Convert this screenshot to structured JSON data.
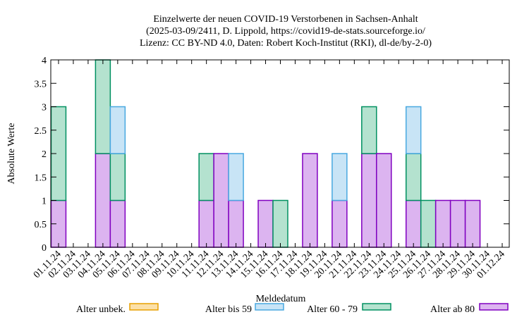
{
  "chart_data": {
    "type": "bar",
    "title_lines": [
      "Einzelwerte der neuen COVID-19 Verstorbenen in Sachsen-Anhalt",
      "(2025-03-09/2411, D. Lippold, https://covid19-de-stats.sourceforge.io/",
      "Lizenz: CC BY-ND 4.0, Daten: Robert Koch-Institut (RKI), dl-de/by-2-0)"
    ],
    "xlabel": "Meldedatum",
    "ylabel": "Absolute Werte",
    "ylim": [
      0,
      4
    ],
    "yticks": [
      "0",
      "0.5",
      "1",
      "1.5",
      "2",
      "2.5",
      "3",
      "3.5",
      "4"
    ],
    "stacked": true,
    "categories": [
      "01.11.24",
      "02.11.24",
      "03.11.24",
      "04.11.24",
      "05.11.24",
      "06.11.24",
      "07.11.24",
      "08.11.24",
      "09.11.24",
      "10.11.24",
      "11.11.24",
      "12.11.24",
      "13.11.24",
      "14.11.24",
      "15.11.24",
      "16.11.24",
      "17.11.24",
      "18.11.24",
      "19.11.24",
      "20.11.24",
      "21.11.24",
      "22.11.24",
      "23.11.24",
      "24.11.24",
      "25.11.24",
      "26.11.24",
      "27.11.24",
      "28.11.24",
      "29.11.24",
      "30.11.24",
      "01.12.24"
    ],
    "series": [
      {
        "name": "Alter ab 80",
        "fill": "#dcb4f0",
        "stroke": "#8000c0",
        "values": [
          1,
          0,
          0,
          2,
          1,
          0,
          0,
          0,
          0,
          0,
          1,
          2,
          1,
          0,
          1,
          0,
          0,
          2,
          0,
          1,
          0,
          2,
          2,
          0,
          1,
          0,
          1,
          1,
          1,
          0,
          0
        ]
      },
      {
        "name": "Alter 60 - 79",
        "fill": "#b4e2cf",
        "stroke": "#009060",
        "values": [
          2,
          0,
          0,
          2,
          1,
          0,
          0,
          0,
          0,
          0,
          1,
          0,
          0,
          0,
          0,
          1,
          0,
          0,
          0,
          0,
          0,
          1,
          0,
          0,
          1,
          1,
          0,
          0,
          0,
          0,
          0
        ]
      },
      {
        "name": "Alter bis 59",
        "fill": "#c8e4f6",
        "stroke": "#48a8e0",
        "values": [
          0,
          0,
          0,
          0,
          1,
          0,
          0,
          0,
          0,
          0,
          0,
          0,
          1,
          0,
          0,
          0,
          0,
          0,
          0,
          1,
          0,
          0,
          0,
          0,
          1,
          0,
          0,
          0,
          0,
          0,
          0
        ]
      },
      {
        "name": "Alter unbek.",
        "fill": "#fbe0a8",
        "stroke": "#e8a000",
        "values": [
          0,
          0,
          0,
          0,
          0,
          0,
          0,
          0,
          0,
          0,
          0,
          0,
          0,
          0,
          0,
          0,
          0,
          0,
          0,
          0,
          0,
          0,
          0,
          0,
          0,
          0,
          0,
          0,
          0,
          0,
          0
        ]
      }
    ],
    "legend": {
      "placement": "bottom",
      "order": [
        "Alter unbek.",
        "Alter bis 59",
        "Alter 60 - 79",
        "Alter ab 80"
      ]
    }
  }
}
